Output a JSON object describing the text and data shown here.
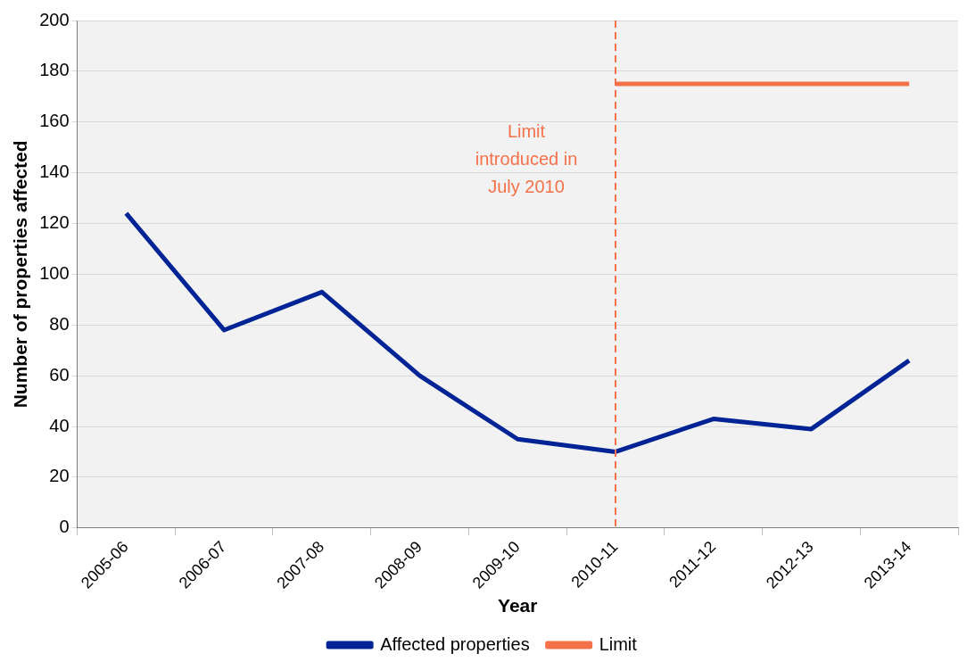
{
  "chart_data": {
    "type": "line",
    "xlabel": "Year",
    "ylabel": "Number of properties affected",
    "categories": [
      "2005-06",
      "2006-07",
      "2007-08",
      "2008-09",
      "2009-10",
      "2010-11",
      "2011-12",
      "2012-13",
      "2013-14"
    ],
    "series": [
      {
        "name": "Affected properties",
        "color": "#002395",
        "values": [
          124,
          78,
          93,
          60,
          35,
          30,
          43,
          39,
          66
        ]
      },
      {
        "name": "Limit",
        "color": "#f4714a",
        "values": [
          null,
          null,
          null,
          null,
          null,
          175,
          175,
          175,
          175
        ]
      }
    ],
    "ylim": [
      0,
      200
    ],
    "yticks": [
      0,
      20,
      40,
      60,
      80,
      100,
      120,
      140,
      160,
      180,
      200
    ],
    "ref_lines": [
      {
        "axis": "x",
        "value": "2010-11",
        "label": "Limit introduced in July 2010",
        "color": "#f4714a",
        "line_style": "dashed"
      }
    ],
    "grid": "y",
    "legend": "bottom",
    "marker": "none",
    "line_style": "solid"
  }
}
